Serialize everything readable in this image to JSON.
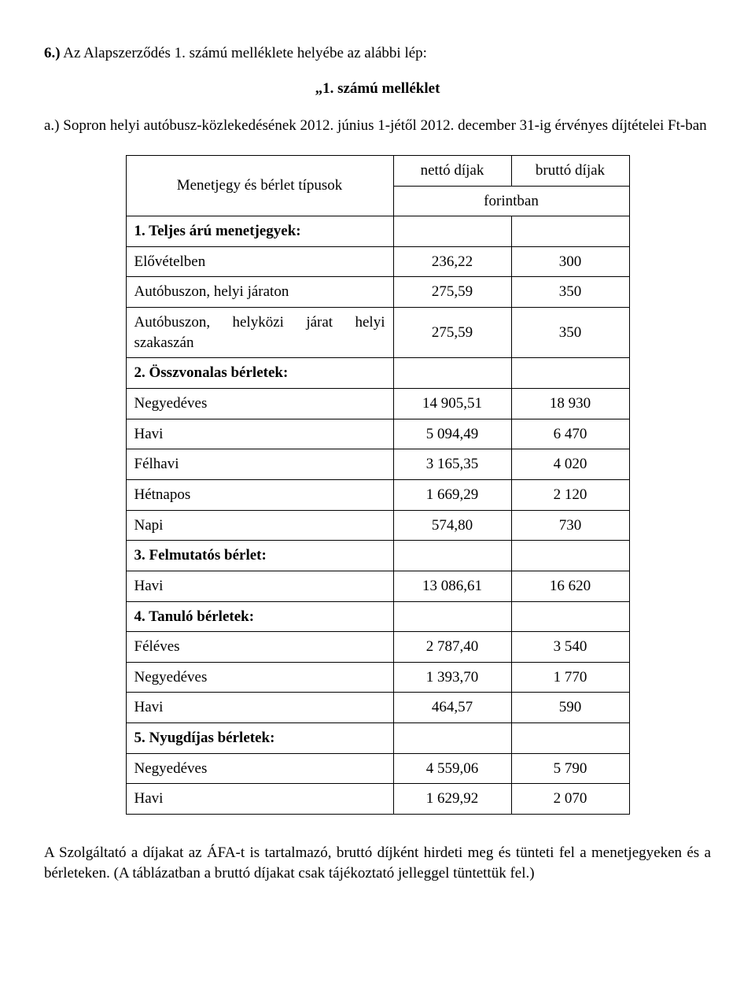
{
  "heading_line": {
    "prefix_bold": "6.)",
    "rest": " Az Alapszerződés 1. számú melléklete helyébe az alábbi lép:"
  },
  "attachment_title": "„1. számú melléklet",
  "intro": {
    "a_label": "a.)",
    "a_text": " Sopron helyi autóbusz-közlekedésének 2012. június 1-jétől 2012. december 31-ig érvényes díjtételei Ft-ban"
  },
  "table": {
    "header": {
      "types": "Menetjegy és bérlet típusok",
      "netto": "nettó díjak",
      "brutto": "bruttó díjak",
      "forintban": "forintban"
    },
    "sections": [
      {
        "title": "1. Teljes árú menetjegyek:",
        "rows": [
          {
            "label": "Elővételben",
            "net": "236,22",
            "gross": "300"
          },
          {
            "label": "Autóbuszon, helyi járaton",
            "net": "275,59",
            "gross": "350"
          },
          {
            "label": "Autóbuszon, helyközi járat helyi szakaszán",
            "net": "275,59",
            "gross": "350"
          }
        ]
      },
      {
        "title": "2. Összvonalas bérletek:",
        "rows": [
          {
            "label": "Negyedéves",
            "net": "14 905,51",
            "gross": "18 930"
          },
          {
            "label": "Havi",
            "net": "5 094,49",
            "gross": "6 470"
          },
          {
            "label": "Félhavi",
            "net": "3 165,35",
            "gross": "4 020"
          },
          {
            "label": "Hétnapos",
            "net": "1 669,29",
            "gross": "2 120"
          },
          {
            "label": "Napi",
            "net": "574,80",
            "gross": "730"
          }
        ]
      },
      {
        "title": "3. Felmutatós bérlet:",
        "rows": [
          {
            "label": "Havi",
            "net": "13 086,61",
            "gross": "16 620"
          }
        ]
      },
      {
        "title": "4. Tanuló bérletek:",
        "rows": [
          {
            "label": "Féléves",
            "net": "2 787,40",
            "gross": "3 540"
          },
          {
            "label": "Negyedéves",
            "net": "1 393,70",
            "gross": "1 770"
          },
          {
            "label": "Havi",
            "net": "464,57",
            "gross": "590"
          }
        ]
      },
      {
        "title": "5. Nyugdíjas bérletek:",
        "rows": [
          {
            "label": "Negyedéves",
            "net": "4 559,06",
            "gross": "5 790"
          },
          {
            "label": "Havi",
            "net": "1 629,92",
            "gross": "2 070"
          }
        ]
      }
    ]
  },
  "closing_text": "A Szolgáltató a díjakat az ÁFA-t is tartalmazó, bruttó díjként hirdeti meg és tünteti fel a menetjegyeken és a bérleteken. (A táblázatban a bruttó díjakat csak tájékoztató jelleggel tüntettük fel.)"
}
